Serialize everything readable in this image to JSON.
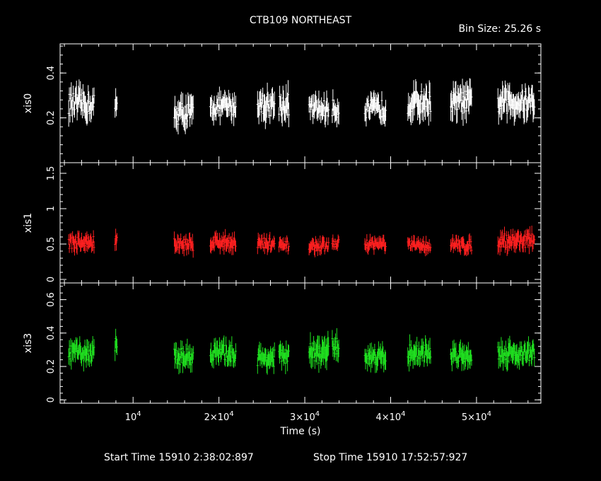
{
  "title": "CTB109 NORTHEAST",
  "bin_size": "Bin Size: 25.26 s",
  "xlabel": "Time (s)",
  "start_label": "Start Time 15910  2:38:02:897",
  "stop_label": "Stop Time 15910 17:52:57:927",
  "chart_data": [
    {
      "type": "scatter",
      "name": "xis0",
      "color": "#ffffff",
      "xlim": [
        1500,
        57500
      ],
      "ylim": [
        0,
        0.53
      ],
      "yticks": [
        {
          "v": 0.2,
          "label": "0.2"
        },
        {
          "v": 0.4,
          "label": "0.4"
        }
      ],
      "segments": [
        {
          "x": [
            2500,
            5500
          ],
          "mean": 0.26,
          "spread": 0.05
        },
        {
          "x": [
            7900,
            8200
          ],
          "mean": 0.25,
          "spread": 0.04
        },
        {
          "x": [
            14800,
            17000
          ],
          "mean": 0.22,
          "spread": 0.05
        },
        {
          "x": [
            19000,
            22000
          ],
          "mean": 0.25,
          "spread": 0.04
        },
        {
          "x": [
            24500,
            26500
          ],
          "mean": 0.26,
          "spread": 0.05
        },
        {
          "x": [
            27000,
            28200
          ],
          "mean": 0.26,
          "spread": 0.05
        },
        {
          "x": [
            30500,
            32800
          ],
          "mean": 0.24,
          "spread": 0.04
        },
        {
          "x": [
            33200,
            34000
          ],
          "mean": 0.24,
          "spread": 0.04
        },
        {
          "x": [
            37000,
            39500
          ],
          "mean": 0.24,
          "spread": 0.04
        },
        {
          "x": [
            42000,
            44700
          ],
          "mean": 0.27,
          "spread": 0.05
        },
        {
          "x": [
            47000,
            49500
          ],
          "mean": 0.27,
          "spread": 0.05
        },
        {
          "x": [
            52500,
            56800
          ],
          "mean": 0.27,
          "spread": 0.05
        }
      ]
    },
    {
      "type": "scatter",
      "name": "xis1",
      "color": "#ff2020",
      "xlim": [
        1500,
        57500
      ],
      "ylim": [
        -0.05,
        1.65
      ],
      "yticks": [
        {
          "v": 0,
          "label": "0"
        },
        {
          "v": 0.5,
          "label": "0.5"
        },
        {
          "v": 1,
          "label": "1"
        },
        {
          "v": 1.5,
          "label": "1.5"
        }
      ],
      "segments": [
        {
          "x": [
            2500,
            5500
          ],
          "mean": 0.52,
          "spread": 0.09
        },
        {
          "x": [
            7900,
            8200
          ],
          "mean": 0.55,
          "spread": 0.1
        },
        {
          "x": [
            14800,
            17000
          ],
          "mean": 0.5,
          "spread": 0.09
        },
        {
          "x": [
            19000,
            22000
          ],
          "mean": 0.53,
          "spread": 0.09
        },
        {
          "x": [
            24500,
            26500
          ],
          "mean": 0.5,
          "spread": 0.09
        },
        {
          "x": [
            27000,
            28200
          ],
          "mean": 0.47,
          "spread": 0.07
        },
        {
          "x": [
            30500,
            32800
          ],
          "mean": 0.47,
          "spread": 0.07
        },
        {
          "x": [
            33200,
            34000
          ],
          "mean": 0.5,
          "spread": 0.07
        },
        {
          "x": [
            37000,
            39500
          ],
          "mean": 0.5,
          "spread": 0.07
        },
        {
          "x": [
            42000,
            44700
          ],
          "mean": 0.48,
          "spread": 0.07
        },
        {
          "x": [
            47000,
            49500
          ],
          "mean": 0.48,
          "spread": 0.08
        },
        {
          "x": [
            52500,
            56800
          ],
          "mean": 0.55,
          "spread": 0.1
        }
      ]
    },
    {
      "type": "scatter",
      "name": "xis3",
      "color": "#20e020",
      "xlim": [
        1500,
        57500
      ],
      "ylim": [
        -0.02,
        0.7
      ],
      "yticks": [
        {
          "v": 0,
          "label": "0"
        },
        {
          "v": 0.2,
          "label": "0.2"
        },
        {
          "v": 0.4,
          "label": "0.4"
        },
        {
          "v": 0.6,
          "label": "0.6"
        }
      ],
      "segments": [
        {
          "x": [
            2500,
            5500
          ],
          "mean": 0.28,
          "spread": 0.05
        },
        {
          "x": [
            7900,
            8200
          ],
          "mean": 0.34,
          "spread": 0.05
        },
        {
          "x": [
            14800,
            17000
          ],
          "mean": 0.26,
          "spread": 0.05
        },
        {
          "x": [
            19000,
            22000
          ],
          "mean": 0.28,
          "spread": 0.05
        },
        {
          "x": [
            24500,
            26500
          ],
          "mean": 0.25,
          "spread": 0.05
        },
        {
          "x": [
            27000,
            28200
          ],
          "mean": 0.26,
          "spread": 0.05
        },
        {
          "x": [
            30500,
            32800
          ],
          "mean": 0.28,
          "spread": 0.06
        },
        {
          "x": [
            33200,
            34000
          ],
          "mean": 0.32,
          "spread": 0.05
        },
        {
          "x": [
            37000,
            39500
          ],
          "mean": 0.26,
          "spread": 0.05
        },
        {
          "x": [
            42000,
            44700
          ],
          "mean": 0.28,
          "spread": 0.05
        },
        {
          "x": [
            47000,
            49500
          ],
          "mean": 0.27,
          "spread": 0.05
        },
        {
          "x": [
            52500,
            56800
          ],
          "mean": 0.28,
          "spread": 0.05
        }
      ]
    }
  ],
  "xticks": [
    {
      "v": 10000,
      "base": "10",
      "exp": "4"
    },
    {
      "v": 20000,
      "base": "2×10",
      "exp": "4"
    },
    {
      "v": 30000,
      "base": "3×10",
      "exp": "4"
    },
    {
      "v": 40000,
      "base": "4×10",
      "exp": "4"
    },
    {
      "v": 50000,
      "base": "5×10",
      "exp": "4"
    }
  ]
}
